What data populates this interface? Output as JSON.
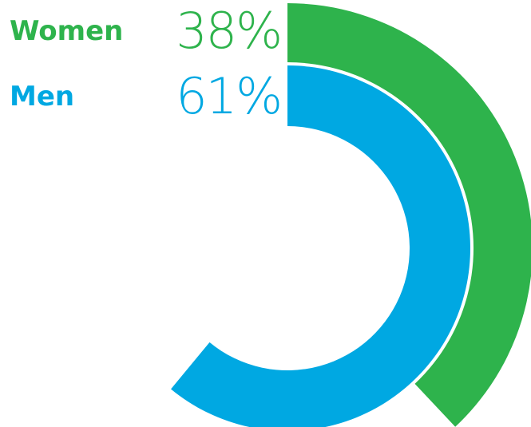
{
  "chart_data": {
    "type": "radial-bar",
    "series": [
      {
        "name": "Women",
        "value": 38,
        "label": "38%",
        "color": "#2eb34c"
      },
      {
        "name": "Men",
        "value": 61,
        "label": "61%",
        "color": "#00a8e2"
      }
    ],
    "max": 100
  }
}
